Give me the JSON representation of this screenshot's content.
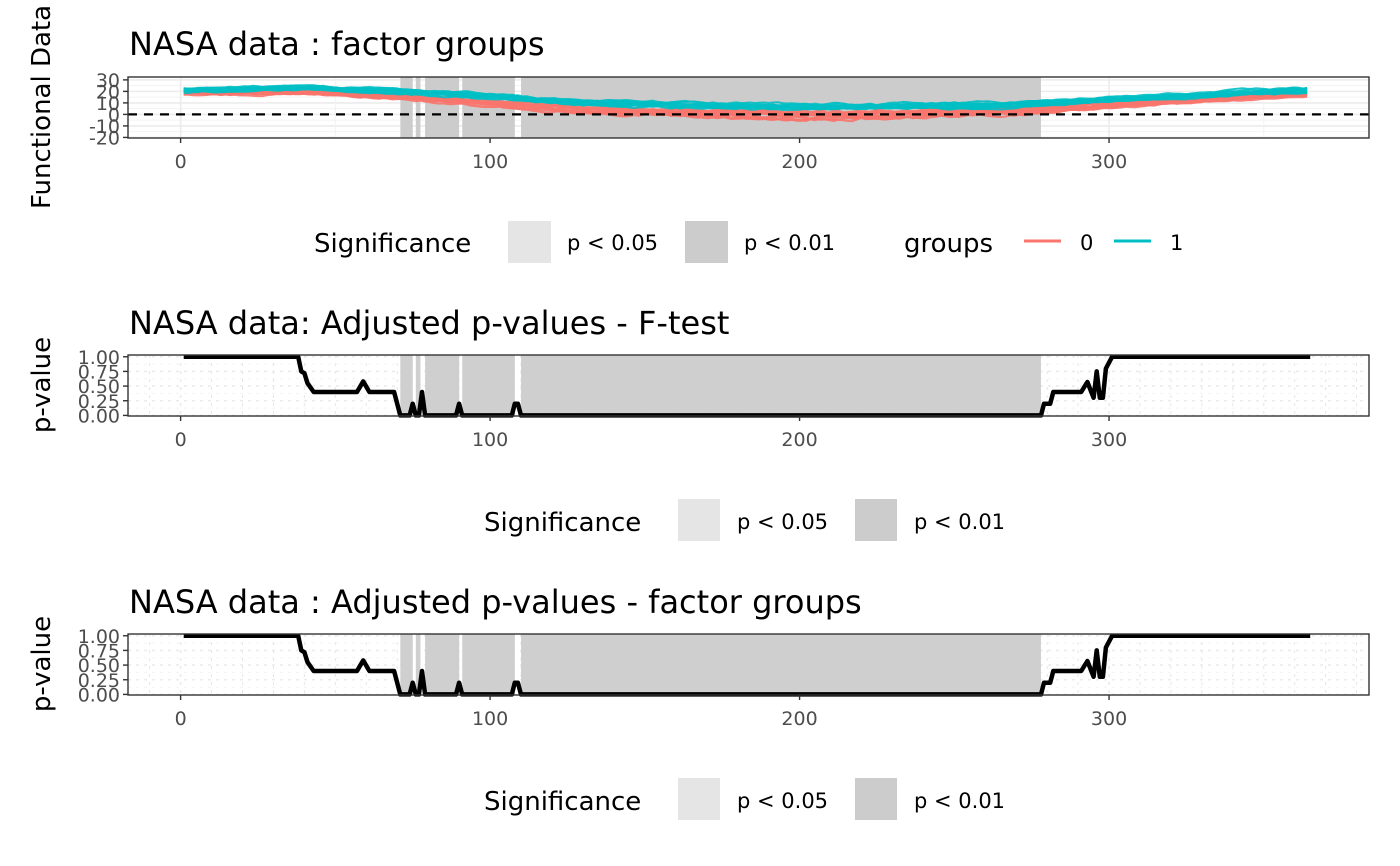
{
  "chart_data": [
    {
      "type": "line",
      "id": "functional",
      "title": "NASA data : factor groups",
      "ylabel": "Functional Data",
      "xlabel": "",
      "xlim": [
        -17,
        384
      ],
      "ylim": [
        -20.5,
        32.5
      ],
      "x_ticks": [
        0,
        100,
        200,
        300
      ],
      "y_ticks": [
        30,
        20,
        10,
        0,
        -10,
        -20
      ],
      "hline": 0,
      "grid": true,
      "x_range_observed": [
        1,
        365
      ],
      "series": [
        {
          "name": "0",
          "color": "#F8766D",
          "profile": {
            "x": [
              1,
              40,
              70,
              100,
              130,
              160,
              200,
              230,
              260,
              280,
              300,
              330,
              365
            ],
            "center": [
              19,
              19.5,
              16,
              10,
              4,
              1,
              -1,
              0,
              2,
              4,
              8,
              13,
              18
            ],
            "spread": [
              4,
              4,
              5,
              6,
              6,
              7,
              8,
              7,
              6,
              5,
              5,
              4,
              4
            ]
          }
        },
        {
          "name": "1",
          "color": "#00BFC4",
          "profile": {
            "x": [
              1,
              40,
              70,
              100,
              130,
              160,
              200,
              230,
              260,
              280,
              300,
              330,
              365
            ],
            "center": [
              21,
              23,
              20,
              16,
              10,
              8,
              6,
              7,
              8,
              10,
              13,
              17,
              21
            ],
            "spread": [
              4,
              4,
              4,
              5,
              5,
              5,
              5,
              5,
              5,
              4,
              4,
              4,
              5
            ]
          }
        }
      ],
      "significance_regions": [
        {
          "start": 71,
          "end": 75,
          "level": "p < 0.01"
        },
        {
          "start": 76,
          "end": 77.5,
          "level": "p < 0.01"
        },
        {
          "start": 79,
          "end": 90,
          "level": "p < 0.01"
        },
        {
          "start": 91,
          "end": 108,
          "level": "p < 0.01"
        },
        {
          "start": 110,
          "end": 278,
          "level": "p < 0.01"
        }
      ],
      "legend": {
        "position": "bottom",
        "significance_title": "Significance",
        "significance_items": [
          {
            "label": "p < 0.05",
            "color": "#E5E5E5"
          },
          {
            "label": "p < 0.01",
            "color": "#CCCCCC"
          }
        ],
        "groups_title": "groups",
        "groups_items": [
          {
            "label": "0",
            "color": "#F8766D"
          },
          {
            "label": "1",
            "color": "#00BFC4"
          }
        ]
      }
    },
    {
      "type": "line",
      "id": "ftest",
      "title": "NASA data: Adjusted p-values - F-test",
      "ylabel": "p-value",
      "xlabel": "",
      "xlim": [
        -17,
        384
      ],
      "ylim": [
        -0.01,
        1.03
      ],
      "x_ticks": [
        0,
        100,
        200,
        300
      ],
      "y_ticks": [
        "1.00",
        "0.75",
        "0.50",
        "0.25",
        "0.00"
      ],
      "grid": true,
      "line_color": "#000000",
      "x": [
        1,
        38,
        39,
        40,
        41,
        43,
        57,
        59,
        61,
        69,
        71,
        74,
        75,
        76,
        77,
        78,
        79,
        89,
        90,
        91,
        107,
        108,
        109,
        110,
        278,
        279,
        281,
        282,
        284,
        291,
        293,
        295,
        296,
        297,
        298,
        299,
        301,
        365
      ],
      "values": [
        1.0,
        1.0,
        0.75,
        0.72,
        0.55,
        0.4,
        0.4,
        0.58,
        0.4,
        0.4,
        0.0,
        0.0,
        0.2,
        0.0,
        0.0,
        0.4,
        0.0,
        0.0,
        0.2,
        0.0,
        0.0,
        0.2,
        0.2,
        0.0,
        0.0,
        0.2,
        0.2,
        0.4,
        0.4,
        0.4,
        0.57,
        0.3,
        0.75,
        0.3,
        0.3,
        0.8,
        1.0,
        1.0
      ],
      "significance_regions": [
        {
          "start": 71,
          "end": 75,
          "level": "p < 0.01"
        },
        {
          "start": 76,
          "end": 77.5,
          "level": "p < 0.01"
        },
        {
          "start": 79,
          "end": 90,
          "level": "p < 0.01"
        },
        {
          "start": 91,
          "end": 108,
          "level": "p < 0.01"
        },
        {
          "start": 110,
          "end": 278,
          "level": "p < 0.01"
        }
      ],
      "legend": {
        "position": "bottom",
        "significance_title": "Significance",
        "significance_items": [
          {
            "label": "p < 0.05",
            "color": "#E5E5E5"
          },
          {
            "label": "p < 0.01",
            "color": "#CCCCCC"
          }
        ]
      }
    },
    {
      "type": "line",
      "id": "factor",
      "title": "NASA data : Adjusted p-values - factor groups",
      "ylabel": "p-value",
      "xlabel": "",
      "xlim": [
        -17,
        384
      ],
      "ylim": [
        -0.01,
        1.03
      ],
      "x_ticks": [
        0,
        100,
        200,
        300
      ],
      "y_ticks": [
        "1.00",
        "0.75",
        "0.50",
        "0.25",
        "0.00"
      ],
      "grid": true,
      "line_color": "#000000",
      "x": [
        1,
        38,
        39,
        40,
        41,
        43,
        57,
        59,
        61,
        69,
        71,
        74,
        75,
        76,
        77,
        78,
        79,
        89,
        90,
        91,
        107,
        108,
        109,
        110,
        278,
        279,
        281,
        282,
        284,
        291,
        293,
        295,
        296,
        297,
        298,
        299,
        301,
        365
      ],
      "values": [
        1.0,
        1.0,
        0.75,
        0.72,
        0.55,
        0.4,
        0.4,
        0.58,
        0.4,
        0.4,
        0.0,
        0.0,
        0.2,
        0.0,
        0.0,
        0.4,
        0.0,
        0.0,
        0.2,
        0.0,
        0.0,
        0.2,
        0.2,
        0.0,
        0.0,
        0.2,
        0.2,
        0.4,
        0.4,
        0.4,
        0.57,
        0.3,
        0.75,
        0.3,
        0.3,
        0.8,
        1.0,
        1.0
      ],
      "significance_regions": [
        {
          "start": 71,
          "end": 75,
          "level": "p < 0.01"
        },
        {
          "start": 76,
          "end": 77.5,
          "level": "p < 0.01"
        },
        {
          "start": 79,
          "end": 90,
          "level": "p < 0.01"
        },
        {
          "start": 91,
          "end": 108,
          "level": "p < 0.01"
        },
        {
          "start": 110,
          "end": 278,
          "level": "p < 0.01"
        }
      ],
      "legend": {
        "position": "bottom",
        "significance_title": "Significance",
        "significance_items": [
          {
            "label": "p < 0.05",
            "color": "#E5E5E5"
          },
          {
            "label": "p < 0.01",
            "color": "#CCCCCC"
          }
        ]
      }
    }
  ]
}
